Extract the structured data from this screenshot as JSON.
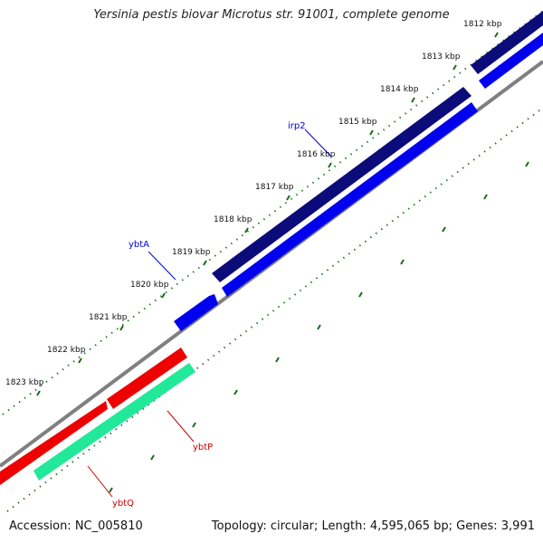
{
  "title": "Yersinia pestis biovar Microtus str. 91001, complete genome",
  "accession": "Accession: NC_005810",
  "summary": "Topology: circular; Length: 4,595,065 bp; Genes: 3,991",
  "ticks": [
    "1812 kbp",
    "1813 kbp",
    "1814 kbp",
    "1815 kbp",
    "1816 kbp",
    "1817 kbp",
    "1818 kbp",
    "1819 kbp",
    "1820 kbp",
    "1821 kbp",
    "1822 kbp",
    "1823 kbp"
  ],
  "genes": [
    {
      "name": "irp2",
      "color": "#0000cc"
    },
    {
      "name": "ybtA",
      "color": "#0000cc"
    },
    {
      "name": "ybtP",
      "color": "#cc0000"
    },
    {
      "name": "ybtQ",
      "color": "#cc0000"
    }
  ],
  "colors": {
    "backbone": "#808080",
    "forward_dark": "#0b0b7a",
    "forward_blue": "#0000ee",
    "reverse_red": "#ee0000",
    "reverse_green": "#22e89a",
    "tick_green": "#1a6b1a"
  }
}
